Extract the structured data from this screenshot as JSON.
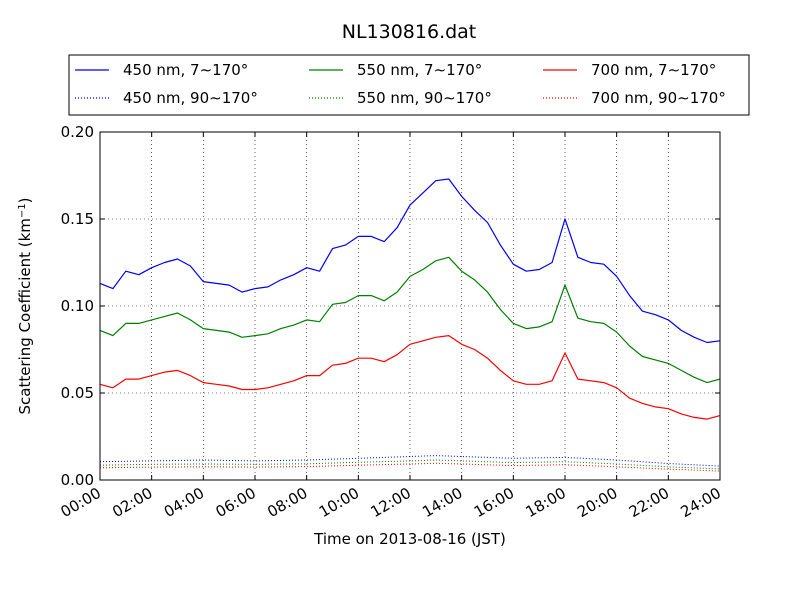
{
  "chart_data": {
    "type": "line",
    "title": "NL130816.dat",
    "xlabel": "Time on 2013-08-16 (JST)",
    "ylabel": "Scattering Coefficient (km",
    "ylabel_sup": "−1",
    "ylabel_end": ")",
    "x_ticks": [
      "00:00",
      "02:00",
      "04:00",
      "06:00",
      "08:00",
      "10:00",
      "12:00",
      "14:00",
      "16:00",
      "18:00",
      "20:00",
      "22:00",
      "24:00"
    ],
    "y_ticks": [
      "0.00",
      "0.05",
      "0.10",
      "0.15",
      "0.20"
    ],
    "xlim": [
      "00:00",
      "24:00"
    ],
    "ylim": [
      0,
      0.2
    ],
    "grid": true,
    "legend_position": "top, above plot",
    "series": [
      {
        "name": "450 nm, 7∼170°",
        "color": "#0000ff",
        "style": "solid",
        "x": [
          "00:00",
          "00:30",
          "01:00",
          "01:30",
          "02:00",
          "02:30",
          "03:00",
          "03:30",
          "04:00",
          "04:30",
          "05:00",
          "05:30",
          "06:00",
          "06:30",
          "07:00",
          "07:30",
          "08:00",
          "08:30",
          "09:00",
          "09:30",
          "10:00",
          "10:30",
          "11:00",
          "11:30",
          "12:00",
          "12:30",
          "13:00",
          "13:30",
          "14:00",
          "14:30",
          "15:00",
          "15:30",
          "16:00",
          "16:30",
          "17:00",
          "17:30",
          "18:00",
          "18:30",
          "19:00",
          "19:30",
          "20:00",
          "20:30",
          "21:00",
          "21:30",
          "22:00",
          "22:30",
          "23:00",
          "23:30",
          "24:00"
        ],
        "values": [
          0.113,
          0.11,
          0.12,
          0.118,
          0.122,
          0.125,
          0.127,
          0.123,
          0.114,
          0.113,
          0.112,
          0.108,
          0.11,
          0.111,
          0.115,
          0.118,
          0.122,
          0.12,
          0.133,
          0.135,
          0.14,
          0.14,
          0.137,
          0.145,
          0.158,
          0.165,
          0.172,
          0.173,
          0.163,
          0.155,
          0.148,
          0.135,
          0.124,
          0.12,
          0.121,
          0.125,
          0.15,
          0.128,
          0.125,
          0.124,
          0.117,
          0.106,
          0.097,
          0.095,
          0.092,
          0.086,
          0.082,
          0.079,
          0.08
        ]
      },
      {
        "name": "550 nm, 7∼170°",
        "color": "#008000",
        "style": "solid",
        "x": [
          "00:00",
          "00:30",
          "01:00",
          "01:30",
          "02:00",
          "02:30",
          "03:00",
          "03:30",
          "04:00",
          "04:30",
          "05:00",
          "05:30",
          "06:00",
          "06:30",
          "07:00",
          "07:30",
          "08:00",
          "08:30",
          "09:00",
          "09:30",
          "10:00",
          "10:30",
          "11:00",
          "11:30",
          "12:00",
          "12:30",
          "13:00",
          "13:30",
          "14:00",
          "14:30",
          "15:00",
          "15:30",
          "16:00",
          "16:30",
          "17:00",
          "17:30",
          "18:00",
          "18:30",
          "19:00",
          "19:30",
          "20:00",
          "20:30",
          "21:00",
          "21:30",
          "22:00",
          "22:30",
          "23:00",
          "23:30",
          "24:00"
        ],
        "values": [
          0.086,
          0.083,
          0.09,
          0.09,
          0.092,
          0.094,
          0.096,
          0.092,
          0.087,
          0.086,
          0.085,
          0.082,
          0.083,
          0.084,
          0.087,
          0.089,
          0.092,
          0.091,
          0.101,
          0.102,
          0.106,
          0.106,
          0.103,
          0.108,
          0.117,
          0.121,
          0.126,
          0.128,
          0.12,
          0.115,
          0.108,
          0.098,
          0.09,
          0.087,
          0.088,
          0.091,
          0.112,
          0.093,
          0.091,
          0.09,
          0.085,
          0.077,
          0.071,
          0.069,
          0.067,
          0.063,
          0.059,
          0.056,
          0.058
        ]
      },
      {
        "name": "700 nm, 7∼170°",
        "color": "#ff0000",
        "style": "solid",
        "x": [
          "00:00",
          "00:30",
          "01:00",
          "01:30",
          "02:00",
          "02:30",
          "03:00",
          "03:30",
          "04:00",
          "04:30",
          "05:00",
          "05:30",
          "06:00",
          "06:30",
          "07:00",
          "07:30",
          "08:00",
          "08:30",
          "09:00",
          "09:30",
          "10:00",
          "10:30",
          "11:00",
          "11:30",
          "12:00",
          "12:30",
          "13:00",
          "13:30",
          "14:00",
          "14:30",
          "15:00",
          "15:30",
          "16:00",
          "16:30",
          "17:00",
          "17:30",
          "18:00",
          "18:30",
          "19:00",
          "19:30",
          "20:00",
          "20:30",
          "21:00",
          "21:30",
          "22:00",
          "22:30",
          "23:00",
          "23:30",
          "24:00"
        ],
        "values": [
          0.055,
          0.053,
          0.058,
          0.058,
          0.06,
          0.062,
          0.063,
          0.06,
          0.056,
          0.055,
          0.054,
          0.052,
          0.052,
          0.053,
          0.055,
          0.057,
          0.06,
          0.06,
          0.066,
          0.067,
          0.07,
          0.07,
          0.068,
          0.072,
          0.078,
          0.08,
          0.082,
          0.083,
          0.078,
          0.075,
          0.07,
          0.063,
          0.057,
          0.055,
          0.055,
          0.057,
          0.073,
          0.058,
          0.057,
          0.056,
          0.053,
          0.047,
          0.044,
          0.042,
          0.041,
          0.038,
          0.036,
          0.035,
          0.037
        ]
      },
      {
        "name": "450 nm, 90∼170°",
        "color": "#0000ff",
        "style": "dotted",
        "x": [
          "00:00",
          "02:00",
          "04:00",
          "06:00",
          "08:00",
          "10:00",
          "12:00",
          "13:00",
          "14:00",
          "16:00",
          "18:00",
          "20:00",
          "22:00",
          "24:00"
        ],
        "values": [
          0.0105,
          0.011,
          0.0115,
          0.011,
          0.0115,
          0.0125,
          0.0135,
          0.014,
          0.0135,
          0.0125,
          0.013,
          0.0115,
          0.0095,
          0.008
        ]
      },
      {
        "name": "550 nm, 90∼170°",
        "color": "#008000",
        "style": "dotted",
        "x": [
          "00:00",
          "02:00",
          "04:00",
          "06:00",
          "08:00",
          "10:00",
          "12:00",
          "13:00",
          "14:00",
          "16:00",
          "18:00",
          "20:00",
          "22:00",
          "24:00"
        ],
        "values": [
          0.0085,
          0.009,
          0.0092,
          0.009,
          0.0093,
          0.0102,
          0.011,
          0.0115,
          0.011,
          0.01,
          0.0105,
          0.0092,
          0.0076,
          0.0064
        ]
      },
      {
        "name": "700 nm, 90∼170°",
        "color": "#ff0000",
        "style": "dotted",
        "x": [
          "00:00",
          "02:00",
          "04:00",
          "06:00",
          "08:00",
          "10:00",
          "12:00",
          "13:00",
          "14:00",
          "16:00",
          "18:00",
          "20:00",
          "22:00",
          "24:00"
        ],
        "values": [
          0.007,
          0.0074,
          0.0076,
          0.0074,
          0.0077,
          0.0085,
          0.0092,
          0.0096,
          0.0092,
          0.0083,
          0.0088,
          0.0076,
          0.0062,
          0.0052
        ]
      }
    ],
    "legend_order": [
      0,
      1,
      2,
      3,
      4,
      5
    ]
  }
}
